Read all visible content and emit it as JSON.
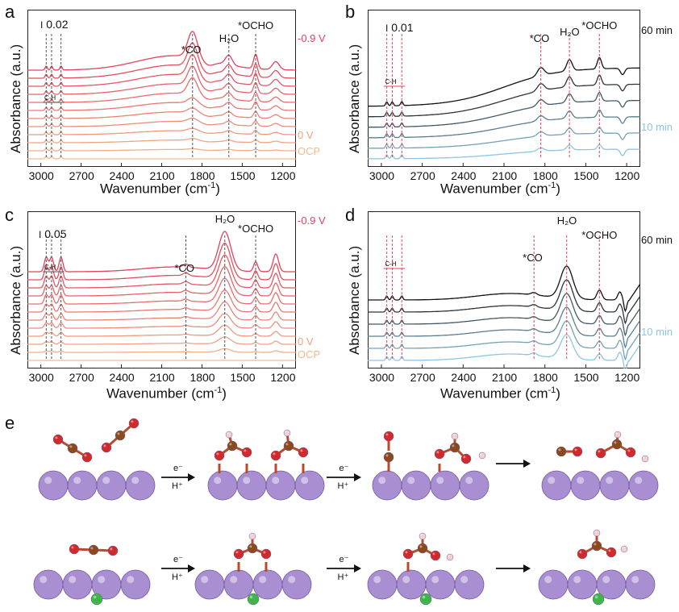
{
  "panels": [
    {
      "id": "a",
      "scale_bar": "0.02",
      "ylabel": "Absorbance (a.u.)",
      "xlabel": "Wavenumber (cm",
      "xlabel_sup": "-1",
      "xlabel_tail": ")",
      "xticks": [
        "3000",
        "2700",
        "2400",
        "2100",
        "1800",
        "1500",
        "1200"
      ],
      "annotations": [
        "*CO",
        "H₂O",
        "*OCHO",
        "C-H"
      ],
      "side_top": "-0.9 V",
      "side_mid": "0 V",
      "side_bottom": "OCP"
    },
    {
      "id": "b",
      "scale_bar": "0.01",
      "ylabel": "Absorbance (a.u.)",
      "xlabel": "Wavenumber (cm",
      "xlabel_sup": "-1",
      "xlabel_tail": ")",
      "xticks": [
        "3000",
        "2700",
        "2400",
        "2100",
        "1800",
        "1500",
        "1200"
      ],
      "annotations": [
        "*CO",
        "H₂O",
        "*OCHO",
        "C-H"
      ],
      "side_top": "60 min",
      "side_bottom": "10 min"
    },
    {
      "id": "c",
      "scale_bar": "0.05",
      "ylabel": "Absorbance (a.u.)",
      "xlabel": "Wavenumber (cm",
      "xlabel_sup": "-1",
      "xlabel_tail": ")",
      "xticks": [
        "3000",
        "2700",
        "2400",
        "2100",
        "1800",
        "1500",
        "1200"
      ],
      "annotations": [
        "*CO",
        "H₂O",
        "*OCHO",
        "C-H"
      ],
      "side_top": "-0.9 V",
      "side_mid": "0 V",
      "side_bottom": "OCP"
    },
    {
      "id": "d",
      "scale_bar": "",
      "ylabel": "Absorbance (a.u.)",
      "xlabel": "Wavenumber (cm",
      "xlabel_sup": "-1",
      "xlabel_tail": ")",
      "xticks": [
        "3000",
        "2700",
        "2400",
        "2100",
        "1800",
        "1500",
        "1200"
      ],
      "annotations": [
        "*CO",
        "H₂O",
        "*OCHO",
        "C-H"
      ],
      "side_top": "60 min",
      "side_bottom": "10 min"
    }
  ],
  "panel_e": {
    "id": "e",
    "step_labels": [
      "e⁻",
      "H⁺"
    ]
  },
  "colors": {
    "red_gradient_top": "#e0435a",
    "red_gradient_bottom": "#f5b98c",
    "gray_top": "#111111",
    "blue_bottom": "#8cc6e2",
    "atom_surface": "#a98fd1",
    "atom_o": "#d12a2a",
    "atom_c": "#8a4a1e",
    "atom_h": "#f1d2d2",
    "atom_dopant": "#3fb64a"
  },
  "chart_data": [
    {
      "panel": "a",
      "type": "line",
      "xlabel": "Wavenumber (cm-1)",
      "ylabel": "Absorbance (a.u.)",
      "xlim": [
        3100,
        1100
      ],
      "x_reversed": true,
      "series_count": 12,
      "series_range": [
        "OCP",
        "0 V",
        "-0.9 V"
      ],
      "peaks_cm1": {
        "C-H": [
          2960,
          2920,
          2850
        ],
        "*CO": 1870,
        "H2O": 1600,
        "*OCHO": 1400
      },
      "scale_bar": 0.02
    },
    {
      "panel": "b",
      "type": "line",
      "xlabel": "Wavenumber (cm-1)",
      "ylabel": "Absorbance (a.u.)",
      "xlim": [
        3100,
        1100
      ],
      "x_reversed": true,
      "series_count": 6,
      "series_range": [
        "10 min",
        "60 min"
      ],
      "peaks_cm1": {
        "C-H": [
          2960,
          2920,
          2850
        ],
        "*CO": 1830,
        "H2O": 1620,
        "*OCHO": 1400
      },
      "scale_bar": 0.01
    },
    {
      "panel": "c",
      "type": "line",
      "xlabel": "Wavenumber (cm-1)",
      "ylabel": "Absorbance (a.u.)",
      "xlim": [
        3100,
        1100
      ],
      "x_reversed": true,
      "series_count": 12,
      "series_range": [
        "OCP",
        "0 V",
        "-0.9 V"
      ],
      "peaks_cm1": {
        "C-H": [
          2960,
          2920,
          2850
        ],
        "*CO": 1920,
        "H2O": 1630,
        "*OCHO": 1400
      },
      "scale_bar": 0.05
    },
    {
      "panel": "d",
      "type": "line",
      "xlabel": "Wavenumber (cm-1)",
      "ylabel": "Absorbance (a.u.)",
      "xlim": [
        3100,
        1100
      ],
      "x_reversed": true,
      "series_count": 6,
      "series_range": [
        "10 min",
        "60 min"
      ],
      "peaks_cm1": {
        "C-H": [
          2960,
          2920,
          2850
        ],
        "*CO": 1880,
        "H2O": 1640,
        "*OCHO": 1400
      }
    }
  ]
}
